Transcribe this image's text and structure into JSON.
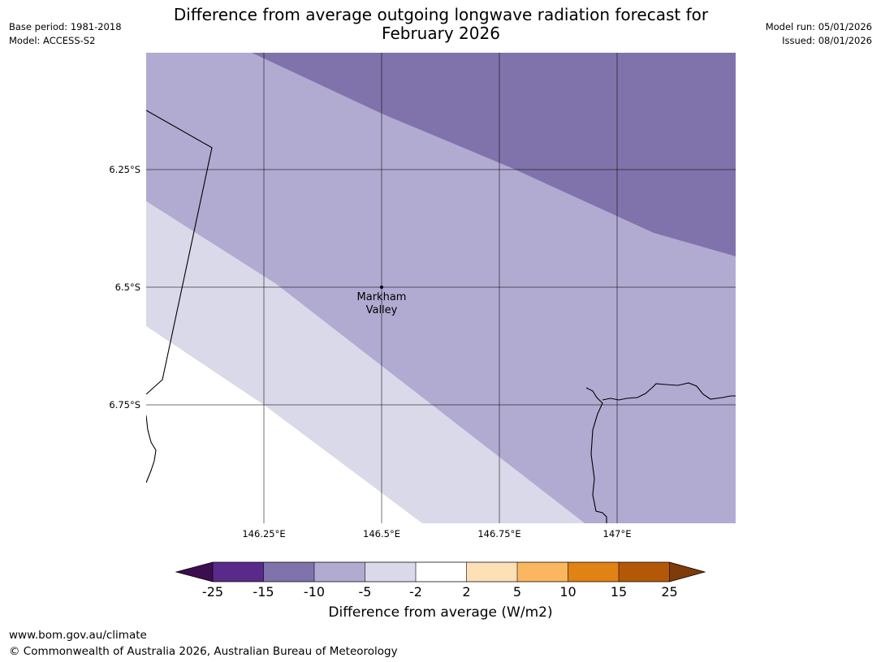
{
  "meta": {
    "base_period": "Base period: 1981-2018",
    "model": "Model: ACCESS-S2",
    "model_run": "Model run: 05/01/2026",
    "issued": "Issued: 08/01/2026"
  },
  "title_line1": "Difference from average outgoing longwave radiation forecast for",
  "title_line2": "February 2026",
  "map": {
    "lat_labels": [
      "6.25°S",
      "6.5°S",
      "6.75°S"
    ],
    "lon_labels": [
      "146.25°E",
      "146.5°E",
      "146.75°E",
      "147°E"
    ],
    "place": {
      "name_line1": "Markham",
      "name_line2": "Valley"
    },
    "colors": {
      "band_-15_-10": "#8073ab",
      "band_-10_-5": "#b1abd2",
      "band_-5_-2": "#d9d9ea",
      "band_-2_2": "#ffffff"
    }
  },
  "colorbar": {
    "title": "Difference from average (W/m2)",
    "tick_labels": [
      "-25",
      "-15",
      "-10",
      "-5",
      "-2",
      "2",
      "5",
      "10",
      "15",
      "25"
    ],
    "colors": {
      "below_-25": "#3b0f4f",
      "-25_-15": "#5a2a8a",
      "-15_-10": "#8073ab",
      "-10_-5": "#b1abd2",
      "-5_-2": "#d9d9ea",
      "-2_2": "#ffffff",
      "2_5": "#fde0b6",
      "5_10": "#fbb760",
      "10_15": "#e08214",
      "15_25": "#b35806",
      "above_25": "#7f3b08"
    }
  },
  "footer": {
    "url": "www.bom.gov.au/climate",
    "copyright": "© Commonwealth of Australia 2026, Australian Bureau of Meteorology"
  }
}
